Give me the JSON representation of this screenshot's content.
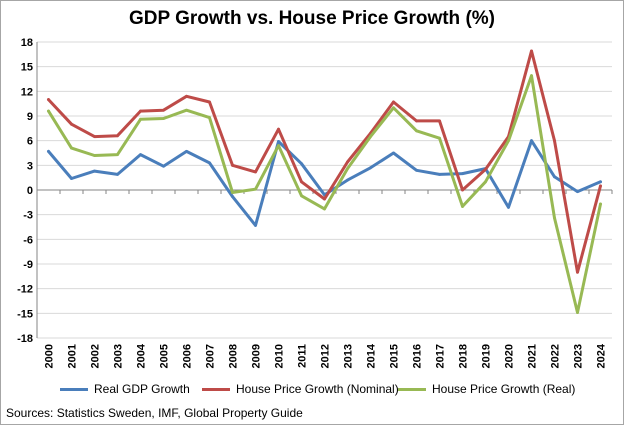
{
  "chart_data": {
    "type": "line",
    "title": "GDP Growth vs. House Price Growth (%)",
    "xlabel": "",
    "ylabel": "",
    "ylim": [
      -18,
      18
    ],
    "yticks": [
      "18",
      "15",
      "12",
      "9",
      "6",
      "3",
      "0",
      "-3",
      "-6",
      "-9",
      "-12",
      "-15",
      "-18"
    ],
    "grid": true,
    "legend_position": "bottom",
    "categories": [
      "2000",
      "2001",
      "2002",
      "2003",
      "2004",
      "2005",
      "2006",
      "2007",
      "2008",
      "2009",
      "2010",
      "2011",
      "2012",
      "2013",
      "2014",
      "2015",
      "2016",
      "2017",
      "2018",
      "2019",
      "2020",
      "2021",
      "2022",
      "2023",
      "2024"
    ],
    "series": [
      {
        "name": "Real GDP Growth",
        "color": "#4a7ebb",
        "values": [
          4.7,
          1.4,
          2.3,
          1.9,
          4.3,
          2.9,
          4.7,
          3.3,
          -0.8,
          -4.3,
          5.9,
          3.2,
          -0.6,
          1.2,
          2.7,
          4.5,
          2.4,
          1.9,
          2.0,
          2.6,
          -2.1,
          6.0,
          1.6,
          -0.2,
          1.0
        ]
      },
      {
        "name": "House Price Growth (Nominal)",
        "color": "#be4b48",
        "values": [
          11.0,
          8.0,
          6.5,
          6.6,
          9.6,
          9.7,
          11.4,
          10.7,
          3.0,
          2.2,
          7.4,
          1.0,
          -1.1,
          3.4,
          6.9,
          10.7,
          8.4,
          8.4,
          0.0,
          2.5,
          6.5,
          16.9,
          6.0,
          -10.0,
          0.5
        ]
      },
      {
        "name": "House Price Growth (Real)",
        "color": "#98b954",
        "values": [
          9.6,
          5.1,
          4.2,
          4.3,
          8.6,
          8.7,
          9.7,
          8.8,
          -0.3,
          0.1,
          5.4,
          -0.7,
          -2.3,
          2.6,
          6.5,
          10.0,
          7.2,
          6.3,
          -2.0,
          1.0,
          6.0,
          13.9,
          -3.4,
          -14.9,
          -1.7
        ]
      }
    ],
    "source": "Sources: Statistics Sweden, IMF, Global Property Guide"
  }
}
